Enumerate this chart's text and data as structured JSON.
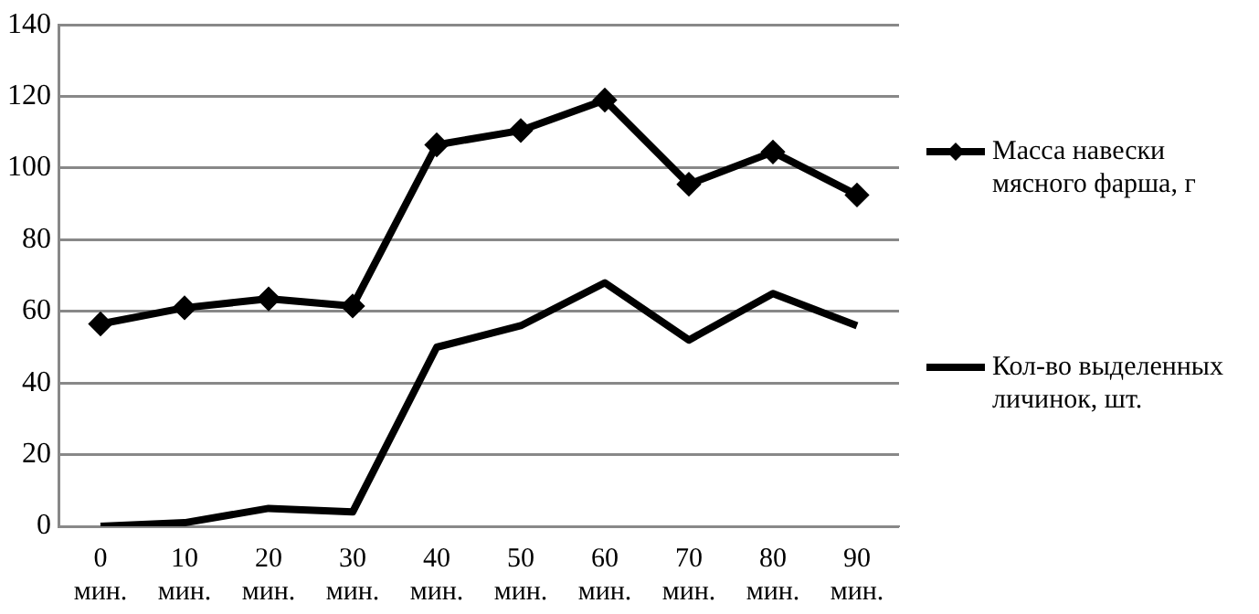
{
  "chart_data": {
    "type": "line",
    "categories": [
      "0 мин.",
      "10 мин.",
      "20 мин.",
      "30 мин.",
      "40 мин.",
      "50 мин.",
      "60 мин.",
      "70 мин.",
      "80 мин.",
      "90 мин."
    ],
    "series": [
      {
        "name": "Масса навески мясного фарша, г",
        "color": "#000000",
        "marker": "diamond",
        "values": [
          56.5,
          61,
          63.5,
          61.5,
          106.5,
          110.5,
          119,
          95.5,
          104.5,
          92.5
        ]
      },
      {
        "name": "Кол-во выделенных личинок, шт.",
        "color": "#000000",
        "marker": "none",
        "values": [
          0,
          1,
          5,
          4,
          50,
          56,
          68,
          52,
          65,
          56
        ]
      }
    ],
    "ylim": [
      0,
      140
    ],
    "yticks": [
      0,
      20,
      40,
      60,
      80,
      100,
      120,
      140
    ],
    "grid": "y",
    "legend": "right",
    "line_style": "solid"
  }
}
